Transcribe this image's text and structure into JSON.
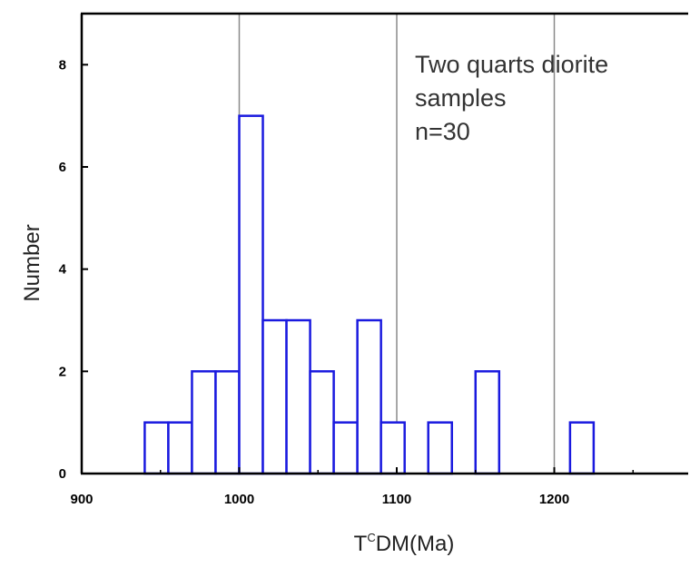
{
  "chart_data": {
    "type": "bar",
    "xlabel_prefix": "T",
    "xlabel_sup": "C",
    "xlabel_main": "DM(Ma)",
    "ylabel": "Number",
    "xlim": [
      900,
      1285
    ],
    "ylim": [
      0,
      9
    ],
    "xticks": [
      900,
      1000,
      1100,
      1200
    ],
    "yticks": [
      0,
      2,
      4,
      6,
      8
    ],
    "vertical_gridlines": [
      1000,
      1100,
      1200
    ],
    "bin_width": 15,
    "annotation": [
      "Two quarts diorite",
      "samples",
      "n=30"
    ],
    "bar_color": "#1a1adf",
    "bars": [
      {
        "x0": 940,
        "value": 1
      },
      {
        "x0": 955,
        "value": 1
      },
      {
        "x0": 970,
        "value": 2
      },
      {
        "x0": 985,
        "value": 2
      },
      {
        "x0": 1000,
        "value": 7
      },
      {
        "x0": 1015,
        "value": 3
      },
      {
        "x0": 1030,
        "value": 3
      },
      {
        "x0": 1045,
        "value": 2
      },
      {
        "x0": 1060,
        "value": 1
      },
      {
        "x0": 1075,
        "value": 3
      },
      {
        "x0": 1090,
        "value": 1
      },
      {
        "x0": 1120,
        "value": 1
      },
      {
        "x0": 1150,
        "value": 2
      },
      {
        "x0": 1210,
        "value": 1
      }
    ]
  }
}
